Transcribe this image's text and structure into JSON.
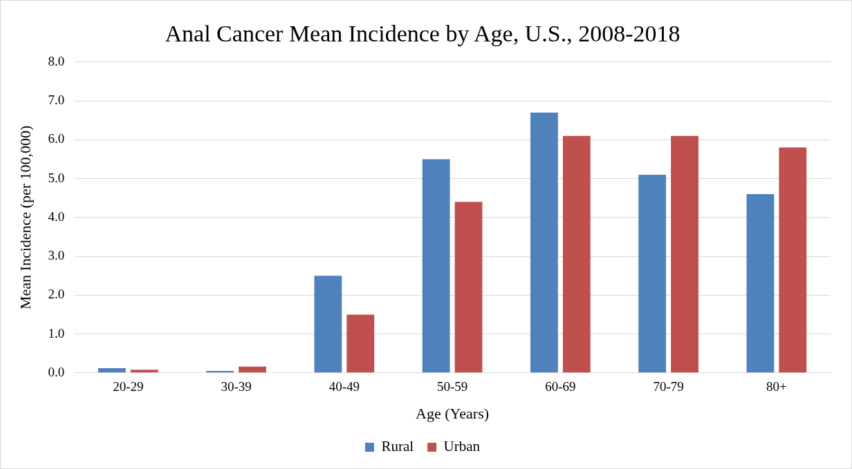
{
  "chart_data": {
    "type": "bar",
    "title": "Anal Cancer Mean Incidence by Age, U.S., 2008-2018",
    "xlabel": "Age (Years)",
    "ylabel": "Mean Incidence (per 100,000)",
    "categories": [
      "20-29",
      "30-39",
      "40-49",
      "50-59",
      "60-69",
      "70-79",
      "80+"
    ],
    "series": [
      {
        "name": "Rural",
        "color": "#4f81bd",
        "values": [
          0.12,
          0.05,
          2.5,
          5.5,
          6.7,
          5.1,
          4.6
        ]
      },
      {
        "name": "Urban",
        "color": "#c0504d",
        "values": [
          0.08,
          0.16,
          1.5,
          4.4,
          6.1,
          6.1,
          5.8
        ]
      }
    ],
    "ylim": [
      0,
      8
    ],
    "yticks": [
      {
        "value": 0,
        "label": "0.0"
      },
      {
        "value": 1,
        "label": "1.0"
      },
      {
        "value": 2,
        "label": "2.0"
      },
      {
        "value": 3,
        "label": "3.0"
      },
      {
        "value": 4,
        "label": "4.0"
      },
      {
        "value": 5,
        "label": "5.0"
      },
      {
        "value": 6,
        "label": "6.0"
      },
      {
        "value": 7,
        "label": "7.0"
      },
      {
        "value": 8,
        "label": "8.0"
      }
    ],
    "grid": "y",
    "legend": "bottom"
  }
}
